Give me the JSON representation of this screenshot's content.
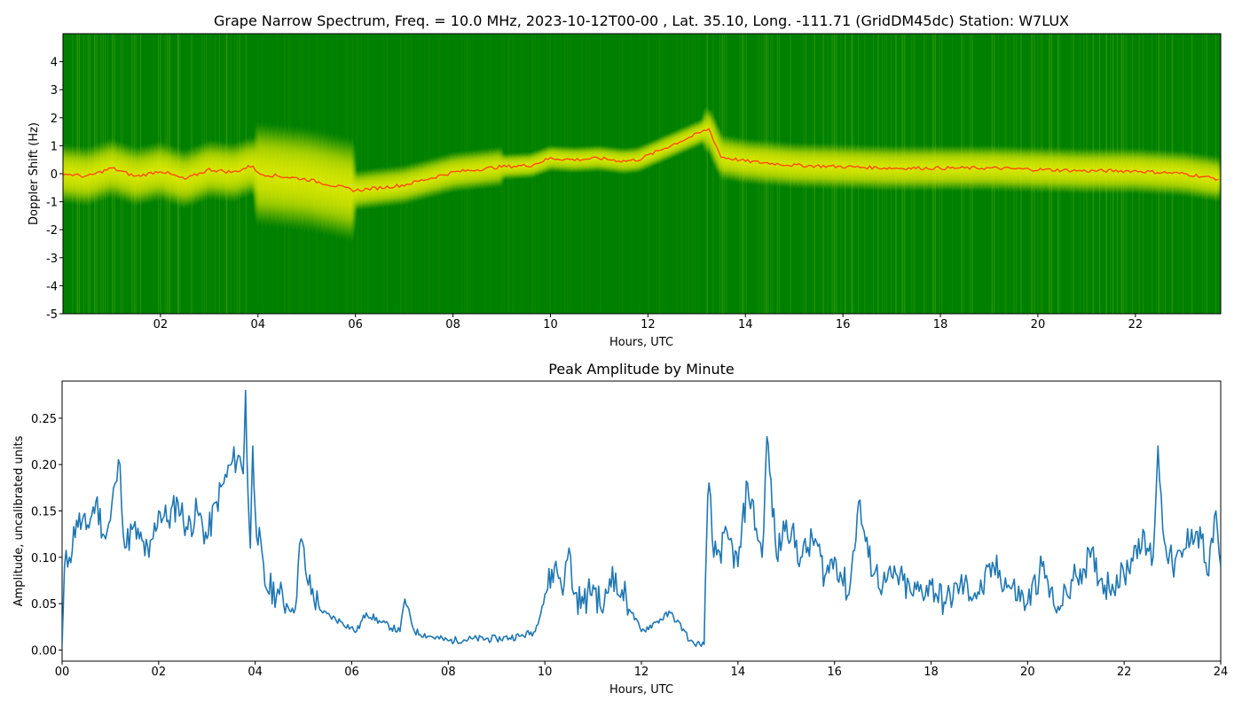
{
  "chart_data": [
    {
      "type": "heatmap",
      "title": "Grape Narrow Spectrum, Freq. = 10.0 MHz, 2023-10-12T00-00 , Lat.  35.10, Long. -111.71 (GridDM45dc) Station: W7LUX",
      "xlabel": "Hours, UTC",
      "ylabel": "Doppler Shift (Hz)",
      "xlim": [
        0,
        23.75
      ],
      "ylim": [
        -5,
        5
      ],
      "xticks": [
        "02",
        "04",
        "06",
        "08",
        "10",
        "12",
        "14",
        "16",
        "18",
        "20",
        "22"
      ],
      "xtick_values": [
        2,
        4,
        6,
        8,
        10,
        12,
        14,
        16,
        18,
        20,
        22
      ],
      "yticks": [
        "4",
        "3",
        "2",
        "1",
        "0",
        "-1",
        "-2",
        "-3",
        "-4",
        "-5"
      ],
      "ytick_values": [
        4,
        3,
        2,
        1,
        0,
        -1,
        -2,
        -3,
        -4,
        -5
      ],
      "colors": {
        "background": "#008000",
        "signal": "#f2f200",
        "peak": "#ff4a00"
      },
      "peak_trace": {
        "x": [
          0,
          0.5,
          1,
          1.5,
          2,
          2.5,
          3,
          3.5,
          3.9,
          4,
          5,
          6,
          7,
          8,
          9,
          9.6,
          10,
          10.5,
          11,
          11.5,
          11.8,
          13.25,
          13.5,
          14,
          15,
          16,
          17,
          18,
          19,
          20,
          21,
          22,
          23,
          23.75
        ],
        "y": [
          0.0,
          -0.1,
          0.2,
          -0.1,
          0.1,
          -0.2,
          0.15,
          0.05,
          0.3,
          0.0,
          -0.2,
          -0.6,
          -0.4,
          0.05,
          0.25,
          0.3,
          0.55,
          0.5,
          0.55,
          0.45,
          0.5,
          1.6,
          0.6,
          0.45,
          0.3,
          0.25,
          0.2,
          0.2,
          0.2,
          0.15,
          0.1,
          0.1,
          0.0,
          -0.2
        ]
      }
    },
    {
      "type": "line",
      "title": "Peak Amplitude by Minute",
      "xlabel": "Hours, UTC",
      "ylabel": "Amplitude, uncalibrated units",
      "xlim": [
        0,
        24
      ],
      "ylim": [
        -0.012,
        0.29
      ],
      "xticks": [
        "00",
        "02",
        "04",
        "06",
        "08",
        "10",
        "12",
        "14",
        "16",
        "18",
        "20",
        "22",
        "24"
      ],
      "xtick_values": [
        0,
        2,
        4,
        6,
        8,
        10,
        12,
        14,
        16,
        18,
        20,
        22,
        24
      ],
      "yticks": [
        "0.00",
        "0.05",
        "0.10",
        "0.15",
        "0.20",
        "0.25"
      ],
      "ytick_values": [
        0,
        0.05,
        0.1,
        0.15,
        0.2,
        0.25
      ],
      "color": "#1f77b4",
      "x": [
        0.0,
        0.05,
        0.15,
        0.3,
        0.5,
        0.7,
        0.9,
        1.0,
        1.1,
        1.2,
        1.3,
        1.45,
        1.6,
        1.8,
        2.0,
        2.2,
        2.4,
        2.6,
        2.8,
        3.0,
        3.2,
        3.35,
        3.5,
        3.65,
        3.75,
        3.8,
        3.85,
        3.9,
        3.95,
        4.0,
        4.2,
        4.5,
        4.8,
        4.95,
        5.1,
        5.4,
        5.8,
        6.1,
        6.3,
        6.6,
        7.0,
        7.1,
        7.3,
        7.6,
        8.0,
        8.5,
        9.0,
        9.5,
        9.8,
        10.0,
        10.2,
        10.4,
        10.5,
        10.6,
        10.8,
        11.0,
        11.2,
        11.4,
        11.5,
        11.6,
        11.8,
        12.0,
        12.3,
        12.6,
        12.9,
        13.0,
        13.1,
        13.3,
        13.35,
        13.4,
        13.5,
        13.8,
        14.0,
        14.2,
        14.5,
        14.6,
        14.8,
        15.0,
        15.3,
        15.6,
        15.8,
        16.0,
        16.3,
        16.5,
        16.7,
        17.0,
        17.3,
        17.6,
        18.0,
        18.3,
        18.6,
        19.0,
        19.3,
        19.6,
        20.0,
        20.3,
        20.6,
        21.0,
        21.3,
        21.6,
        22.0,
        22.3,
        22.6,
        22.7,
        22.8,
        23.0,
        23.2,
        23.4,
        23.6,
        23.75,
        23.9,
        24.0
      ],
      "y": [
        0.005,
        0.09,
        0.1,
        0.14,
        0.13,
        0.16,
        0.12,
        0.14,
        0.18,
        0.2,
        0.11,
        0.13,
        0.12,
        0.1,
        0.15,
        0.14,
        0.16,
        0.13,
        0.15,
        0.12,
        0.16,
        0.18,
        0.2,
        0.21,
        0.19,
        0.28,
        0.17,
        0.11,
        0.22,
        0.15,
        0.07,
        0.06,
        0.04,
        0.12,
        0.07,
        0.04,
        0.03,
        0.02,
        0.04,
        0.03,
        0.02,
        0.055,
        0.02,
        0.015,
        0.01,
        0.012,
        0.012,
        0.015,
        0.02,
        0.06,
        0.09,
        0.07,
        0.11,
        0.06,
        0.05,
        0.07,
        0.04,
        0.09,
        0.06,
        0.065,
        0.04,
        0.02,
        0.03,
        0.04,
        0.02,
        0.01,
        0.006,
        0.006,
        0.12,
        0.18,
        0.1,
        0.12,
        0.09,
        0.18,
        0.1,
        0.23,
        0.1,
        0.14,
        0.1,
        0.12,
        0.08,
        0.1,
        0.06,
        0.16,
        0.1,
        0.07,
        0.08,
        0.06,
        0.07,
        0.05,
        0.07,
        0.06,
        0.09,
        0.07,
        0.05,
        0.09,
        0.04,
        0.08,
        0.1,
        0.07,
        0.08,
        0.12,
        0.1,
        0.22,
        0.13,
        0.09,
        0.1,
        0.13,
        0.12,
        0.08,
        0.15,
        0.09
      ]
    }
  ]
}
